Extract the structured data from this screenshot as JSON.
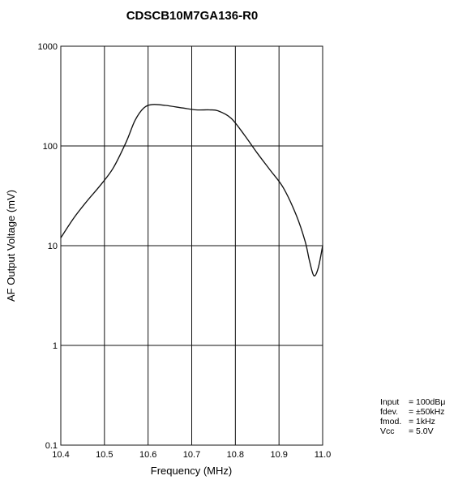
{
  "chart_data": {
    "type": "line",
    "title": "CDSCB10M7GA136-R0",
    "xlabel": "Frequency (MHz)",
    "ylabel": "AF Output Voltage (mV)",
    "x_scale": "linear",
    "y_scale": "log",
    "xlim": [
      10.4,
      11.0
    ],
    "ylim": [
      0.1,
      1000
    ],
    "x_ticks": [
      "10.4",
      "10.5",
      "10.6",
      "10.7",
      "10.8",
      "10.9",
      "11.0"
    ],
    "y_ticks": [
      "0.1",
      "1",
      "10",
      "100",
      "1000"
    ],
    "grid": true,
    "series": [
      {
        "x": [
          10.4,
          10.43,
          10.46,
          10.49,
          10.52,
          10.55,
          10.57,
          10.59,
          10.61,
          10.64,
          10.68,
          10.71,
          10.74,
          10.76,
          10.79,
          10.82,
          10.85,
          10.88,
          10.91,
          10.94,
          10.96,
          10.97,
          10.98,
          10.99,
          11.0
        ],
        "y": [
          12,
          19,
          28,
          40,
          60,
          110,
          180,
          240,
          260,
          255,
          240,
          230,
          230,
          225,
          190,
          130,
          85,
          57,
          38,
          20,
          11,
          7,
          5,
          6,
          10
        ]
      }
    ],
    "annotations": [
      {
        "label": "Input",
        "sep": "=",
        "value": "100dBμ"
      },
      {
        "label": "fdev.",
        "sep": "=",
        "value": "±50kHz"
      },
      {
        "label": "fmod.",
        "sep": "=",
        "value": "1kHz"
      },
      {
        "label": "Vcc",
        "sep": "=",
        "value": "5.0V"
      }
    ]
  },
  "colors": {
    "plot_line": "#111111",
    "grid": "#111111",
    "text": "#111111",
    "background": "#ffffff"
  }
}
